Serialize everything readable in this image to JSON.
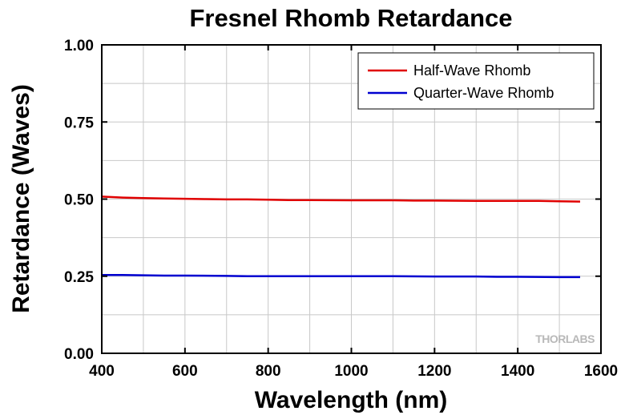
{
  "chart_data": {
    "type": "line",
    "title": "Fresnel Rhomb Retardance",
    "xlabel": "Wavelength (nm)",
    "ylabel": "Retardance (Waves)",
    "xlim": [
      400,
      1600
    ],
    "ylim": [
      0,
      1.0
    ],
    "x_ticks": [
      400,
      600,
      800,
      1000,
      1200,
      1400,
      1600
    ],
    "y_ticks": [
      0,
      0.25,
      0.5,
      0.75,
      1.0
    ],
    "x_tick_labels": [
      "400",
      "600",
      "800",
      "1000",
      "1200",
      "1400",
      "1600"
    ],
    "y_tick_labels": [
      "0.00",
      "0.25",
      "0.50",
      "0.75",
      "1.00"
    ],
    "grid": true,
    "legend_position": "top-right",
    "series": [
      {
        "name": "Half-Wave Rhomb",
        "color": "#e00000",
        "x": [
          400,
          450,
          500,
          550,
          600,
          650,
          700,
          750,
          800,
          850,
          900,
          1000,
          1100,
          1150,
          1200,
          1300,
          1400,
          1450,
          1500,
          1550
        ],
        "y": [
          0.508,
          0.505,
          0.503,
          0.502,
          0.501,
          0.5,
          0.499,
          0.499,
          0.498,
          0.497,
          0.497,
          0.496,
          0.496,
          0.495,
          0.495,
          0.494,
          0.494,
          0.494,
          0.493,
          0.492
        ]
      },
      {
        "name": "Quarter-Wave Rhomb",
        "color": "#0000d0",
        "x": [
          400,
          450,
          500,
          550,
          600,
          700,
          750,
          800,
          900,
          1000,
          1100,
          1200,
          1300,
          1350,
          1400,
          1500,
          1550
        ],
        "y": [
          0.254,
          0.254,
          0.253,
          0.252,
          0.252,
          0.251,
          0.25,
          0.25,
          0.25,
          0.25,
          0.25,
          0.249,
          0.249,
          0.248,
          0.248,
          0.247,
          0.247
        ]
      }
    ]
  },
  "watermark": {
    "text": "THORLABS"
  }
}
